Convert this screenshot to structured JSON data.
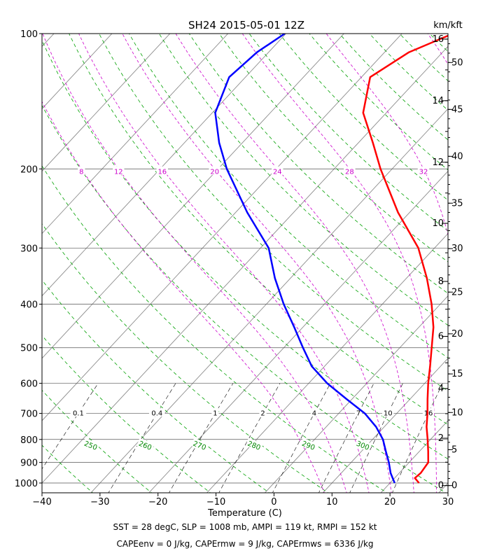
{
  "chart_data": {
    "type": "line",
    "subtype": "skew-T log-P",
    "title": "SH24 2015-05-01 12Z",
    "xlabel": "Temperature (C)",
    "right_axis_label": "km/kft",
    "x_ticks": [
      -40,
      -30,
      -20,
      -10,
      0,
      10,
      20,
      30
    ],
    "x_tick_labels": [
      "−40",
      "−30",
      "−20",
      "−10",
      "0",
      "10",
      "20",
      "30"
    ],
    "xlim": [
      -40,
      30
    ],
    "ylim_pressure_hpa": [
      1050,
      100
    ],
    "y_scale": "log",
    "pressure_ticks": [
      1000,
      900,
      800,
      700,
      600,
      500,
      400,
      300,
      200,
      100
    ],
    "pressure_tick_labels": [
      "1000",
      "900",
      "800",
      "700",
      "600",
      "500",
      "400",
      "300",
      "200",
      "100"
    ],
    "km_ticks": [
      0,
      2,
      4,
      6,
      8,
      10,
      12,
      14,
      16
    ],
    "km_tick_labels": [
      "0",
      "2",
      "4",
      "6",
      "8",
      "10",
      "12",
      "14",
      "16"
    ],
    "kft_ticks": [
      0,
      5,
      10,
      15,
      20,
      25,
      30,
      35,
      40,
      45,
      50
    ],
    "kft_tick_labels": [
      "0",
      "5",
      "10",
      "15",
      "20",
      "25",
      "30",
      "35",
      "40",
      "45",
      "50"
    ],
    "dry_adiabat_labels": [
      {
        "theta_k": 250,
        "label": "250"
      },
      {
        "theta_k": 260,
        "label": "260"
      },
      {
        "theta_k": 270,
        "label": "270"
      },
      {
        "theta_k": 280,
        "label": "280"
      },
      {
        "theta_k": 290,
        "label": "290"
      },
      {
        "theta_k": 300,
        "label": "300"
      }
    ],
    "mixing_ratio_labels_700": [
      {
        "w_gkg": 0.1,
        "label": "0.1"
      },
      {
        "w_gkg": 0.4,
        "label": "0.4"
      },
      {
        "w_gkg": 1,
        "label": "1"
      },
      {
        "w_gkg": 2,
        "label": "2"
      },
      {
        "w_gkg": 4,
        "label": "4"
      },
      {
        "w_gkg": 7,
        "label": "7"
      },
      {
        "w_gkg": 10,
        "label": "10"
      },
      {
        "w_gkg": 16,
        "label": "16"
      }
    ],
    "moist_adiabat_labels_200": [
      {
        "theta_w_c": 8,
        "label": "8"
      },
      {
        "theta_w_c": 12,
        "label": "12"
      },
      {
        "theta_w_c": 16,
        "label": "16"
      },
      {
        "theta_w_c": 20,
        "label": "20"
      },
      {
        "theta_w_c": 24,
        "label": "24"
      },
      {
        "theta_w_c": 28,
        "label": "28"
      },
      {
        "theta_w_c": 32,
        "label": "32"
      }
    ],
    "series": [
      {
        "color": "#ff0000",
        "points": [
          {
            "p": 1000,
            "t": 25.0
          },
          {
            "p": 975,
            "t": 23.5
          },
          {
            "p": 950,
            "t": 23.7
          },
          {
            "p": 900,
            "t": 23.3
          },
          {
            "p": 850,
            "t": 21.5
          },
          {
            "p": 800,
            "t": 19.5
          },
          {
            "p": 750,
            "t": 17.3
          },
          {
            "p": 700,
            "t": 15.3
          },
          {
            "p": 650,
            "t": 13.0
          },
          {
            "p": 600,
            "t": 10.6
          },
          {
            "p": 550,
            "t": 8.2
          },
          {
            "p": 500,
            "t": 5.5
          },
          {
            "p": 450,
            "t": 2.5
          },
          {
            "p": 400,
            "t": -1.5
          },
          {
            "p": 350,
            "t": -6.5
          },
          {
            "p": 300,
            "t": -12.8
          },
          {
            "p": 250,
            "t": -22.0
          },
          {
            "p": 200,
            "t": -32.0
          },
          {
            "p": 175,
            "t": -37.5
          },
          {
            "p": 150,
            "t": -44.0
          },
          {
            "p": 125,
            "t": -48.5
          },
          {
            "p": 110,
            "t": -45.8
          },
          {
            "p": 100,
            "t": -41.2
          }
        ]
      },
      {
        "color": "#0000ff",
        "points": [
          {
            "p": 1000,
            "t": 20.8
          },
          {
            "p": 950,
            "t": 18.5
          },
          {
            "p": 900,
            "t": 16.5
          },
          {
            "p": 850,
            "t": 14.2
          },
          {
            "p": 800,
            "t": 11.8
          },
          {
            "p": 750,
            "t": 8.6
          },
          {
            "p": 700,
            "t": 4.5
          },
          {
            "p": 650,
            "t": -1.0
          },
          {
            "p": 600,
            "t": -6.8
          },
          {
            "p": 550,
            "t": -12.2
          },
          {
            "p": 500,
            "t": -16.7
          },
          {
            "p": 450,
            "t": -21.5
          },
          {
            "p": 400,
            "t": -27.0
          },
          {
            "p": 350,
            "t": -32.7
          },
          {
            "p": 300,
            "t": -38.6
          },
          {
            "p": 250,
            "t": -48.0
          },
          {
            "p": 200,
            "t": -58.5
          },
          {
            "p": 175,
            "t": -64.0
          },
          {
            "p": 150,
            "t": -69.5
          },
          {
            "p": 125,
            "t": -72.8
          },
          {
            "p": 110,
            "t": -72.0
          },
          {
            "p": 100,
            "t": -70.2
          }
        ]
      }
    ],
    "annotations": [
      "SST = 28 degC, SLP = 1008 mb, AMPI = 119 kt, RMPI = 152 kt",
      "CAPEenv = 0 J/kg, CAPErmw = 9 J/kg, CAPErmws = 6336 J/kg"
    ],
    "colors": {
      "temperature": "#ff0000",
      "dewpoint": "#0000ff",
      "isotherm": "#8c8c8c",
      "dry_adiabat": "#00a000",
      "moist_adiabat": "#cc00cc",
      "mixing_ratio": "#000000",
      "label_magenta": "#cc00cc",
      "label_green": "#008800"
    }
  }
}
